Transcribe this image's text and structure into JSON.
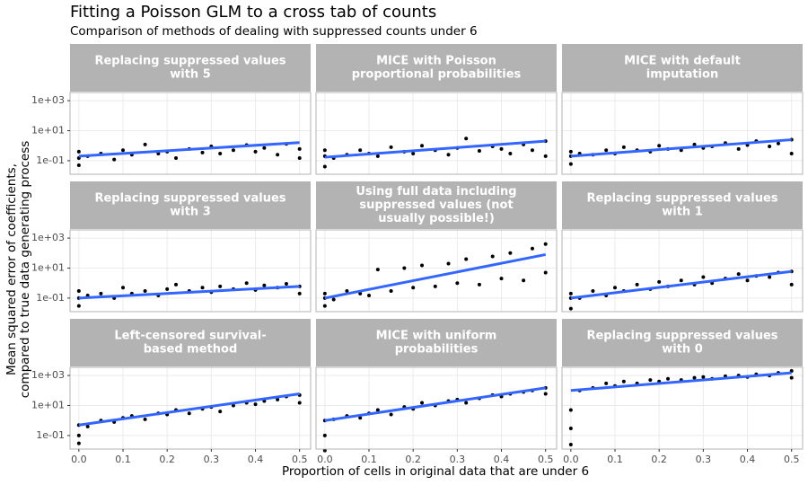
{
  "chart_data": {
    "type": "scatter",
    "title": "Fitting a Poisson GLM to a cross tab of counts",
    "subtitle": "Comparison of methods of dealing with suppressed counts under 6",
    "xlabel": "Proportion of cells in original data that are under 6",
    "ylabel": [
      "Mean squared error of coefficients,",
      "compared to true data generating process"
    ],
    "xlim": [
      -0.02,
      0.525
    ],
    "ylim": [
      0.0125,
      3500
    ],
    "ylog": true,
    "grid": true,
    "xticks": [
      {
        "value": 0,
        "label": "0.0"
      },
      0.1,
      0.2,
      0.3,
      0.4,
      0.5
    ],
    "yticks": [
      {
        "value": 0.1,
        "label": "1e-01"
      },
      {
        "value": 10,
        "label": "1e+01"
      },
      {
        "value": 1000,
        "label": "1e+03"
      }
    ],
    "point_color": "#000000",
    "fit_color": "#3366ff",
    "panels": [
      {
        "title": [
          "Replacing suppressed values",
          "with 5"
        ],
        "x": [
          0,
          0,
          0,
          0.02,
          0.05,
          0.08,
          0.1,
          0.12,
          0.15,
          0.18,
          0.2,
          0.22,
          0.25,
          0.28,
          0.3,
          0.32,
          0.35,
          0.38,
          0.4,
          0.42,
          0.45,
          0.47,
          0.5,
          0.5
        ],
        "y": [
          0.05,
          0.15,
          0.4,
          0.2,
          0.3,
          0.12,
          0.5,
          0.25,
          1.2,
          0.3,
          0.4,
          0.15,
          0.6,
          0.35,
          0.9,
          0.3,
          0.5,
          1.1,
          0.4,
          0.7,
          0.25,
          1.3,
          0.6,
          0.15
        ],
        "fit_x": [
          0,
          0.5
        ],
        "fit_y": [
          0.2,
          1.6
        ]
      },
      {
        "title": [
          "MICE with Poisson",
          "proportional probabilities"
        ],
        "x": [
          0,
          0,
          0,
          0.02,
          0.05,
          0.08,
          0.1,
          0.12,
          0.15,
          0.18,
          0.2,
          0.22,
          0.25,
          0.28,
          0.3,
          0.32,
          0.35,
          0.38,
          0.4,
          0.42,
          0.45,
          0.47,
          0.5,
          0.5
        ],
        "y": [
          0.04,
          0.2,
          0.5,
          0.15,
          0.25,
          0.5,
          0.3,
          0.2,
          0.8,
          0.4,
          0.3,
          1.0,
          0.5,
          0.25,
          0.7,
          3.0,
          0.45,
          0.9,
          0.6,
          0.3,
          1.2,
          0.5,
          2.0,
          0.2
        ],
        "fit_x": [
          0,
          0.5
        ],
        "fit_y": [
          0.17,
          2.0
        ]
      },
      {
        "title": [
          "MICE with default",
          "imputation"
        ],
        "x": [
          0,
          0,
          0,
          0.02,
          0.05,
          0.08,
          0.1,
          0.12,
          0.15,
          0.18,
          0.2,
          0.22,
          0.25,
          0.28,
          0.3,
          0.32,
          0.35,
          0.38,
          0.4,
          0.42,
          0.45,
          0.47,
          0.5,
          0.5
        ],
        "y": [
          0.06,
          0.2,
          0.4,
          0.3,
          0.25,
          0.5,
          0.3,
          0.8,
          0.5,
          0.4,
          1.0,
          0.6,
          0.5,
          1.2,
          0.7,
          0.9,
          1.5,
          0.6,
          1.1,
          2.0,
          0.9,
          1.4,
          2.5,
          0.3
        ],
        "fit_x": [
          0,
          0.5
        ],
        "fit_y": [
          0.2,
          2.5
        ]
      },
      {
        "title": [
          "Replacing suppressed values",
          "with 3"
        ],
        "x": [
          0,
          0,
          0,
          0.02,
          0.05,
          0.08,
          0.1,
          0.12,
          0.15,
          0.18,
          0.2,
          0.22,
          0.25,
          0.28,
          0.3,
          0.32,
          0.35,
          0.38,
          0.4,
          0.42,
          0.45,
          0.47,
          0.5,
          0.5
        ],
        "y": [
          0.03,
          0.1,
          0.3,
          0.15,
          0.2,
          0.1,
          0.5,
          0.2,
          0.3,
          0.15,
          0.4,
          0.8,
          0.3,
          0.5,
          0.25,
          0.6,
          0.4,
          1.0,
          0.35,
          0.7,
          0.5,
          0.9,
          0.6,
          0.2
        ],
        "fit_x": [
          0,
          0.5
        ],
        "fit_y": [
          0.1,
          0.6
        ]
      },
      {
        "title": [
          "Using full data including",
          "suppressed values (not",
          "usually possible!)"
        ],
        "x": [
          0,
          0,
          0,
          0.02,
          0.05,
          0.08,
          0.1,
          0.12,
          0.15,
          0.18,
          0.2,
          0.22,
          0.25,
          0.28,
          0.3,
          0.32,
          0.35,
          0.38,
          0.4,
          0.42,
          0.45,
          0.47,
          0.5,
          0.5
        ],
        "y": [
          0.03,
          0.1,
          0.2,
          0.08,
          0.3,
          0.2,
          0.15,
          8,
          0.3,
          10,
          0.5,
          15,
          0.6,
          20,
          1,
          40,
          0.8,
          60,
          2,
          100,
          1.5,
          200,
          5,
          400
        ],
        "fit_x": [
          0,
          0.5
        ],
        "fit_y": [
          0.1,
          80
        ]
      },
      {
        "title": [
          "Replacing suppressed values",
          "with 1"
        ],
        "x": [
          0,
          0,
          0,
          0.02,
          0.05,
          0.08,
          0.1,
          0.12,
          0.15,
          0.18,
          0.2,
          0.22,
          0.25,
          0.28,
          0.3,
          0.32,
          0.35,
          0.38,
          0.4,
          0.42,
          0.45,
          0.47,
          0.5,
          0.5
        ],
        "y": [
          0.02,
          0.1,
          0.2,
          0.1,
          0.3,
          0.15,
          0.5,
          0.3,
          0.8,
          0.4,
          1.2,
          0.6,
          1.5,
          0.8,
          2.5,
          1,
          2,
          4,
          1.5,
          3,
          2.5,
          5,
          6,
          0.8
        ],
        "fit_x": [
          0,
          0.5
        ],
        "fit_y": [
          0.1,
          6
        ]
      },
      {
        "title": [
          "Left-censored survival-",
          "based method"
        ],
        "x": [
          0,
          0,
          0,
          0.02,
          0.05,
          0.08,
          0.1,
          0.12,
          0.15,
          0.18,
          0.2,
          0.22,
          0.25,
          0.28,
          0.3,
          0.32,
          0.35,
          0.38,
          0.4,
          0.42,
          0.45,
          0.47,
          0.5,
          0.5
        ],
        "y": [
          0.03,
          0.1,
          0.5,
          0.4,
          1,
          0.8,
          1.5,
          2,
          1.2,
          3,
          2.5,
          5,
          3,
          6,
          8,
          4,
          10,
          15,
          12,
          20,
          25,
          40,
          50,
          15
        ],
        "fit_x": [
          0,
          0.5
        ],
        "fit_y": [
          0.5,
          60
        ]
      },
      {
        "title": [
          "MICE with uniform",
          "probabilities"
        ],
        "x": [
          0,
          0,
          0,
          0.02,
          0.05,
          0.08,
          0.1,
          0.12,
          0.15,
          0.18,
          0.2,
          0.22,
          0.25,
          0.28,
          0.3,
          0.32,
          0.35,
          0.38,
          0.4,
          0.42,
          0.45,
          0.47,
          0.5,
          0.5
        ],
        "y": [
          0.01,
          0.1,
          1,
          1.2,
          2,
          1.5,
          3,
          5,
          2.5,
          8,
          6,
          15,
          10,
          20,
          25,
          15,
          30,
          50,
          40,
          60,
          80,
          100,
          150,
          60
        ],
        "fit_x": [
          0,
          0.5
        ],
        "fit_y": [
          1,
          150
        ]
      },
      {
        "title": [
          "Replacing suppressed values",
          "with 0"
        ],
        "x": [
          0,
          0,
          0,
          0.02,
          0.05,
          0.08,
          0.1,
          0.12,
          0.15,
          0.18,
          0.2,
          0.22,
          0.25,
          0.28,
          0.3,
          0.32,
          0.35,
          0.38,
          0.4,
          0.42,
          0.45,
          0.47,
          0.5,
          0.5
        ],
        "y": [
          0.025,
          0.3,
          5,
          100,
          150,
          300,
          200,
          400,
          300,
          500,
          400,
          600,
          500,
          700,
          800,
          600,
          900,
          1000,
          800,
          1200,
          1000,
          1500,
          2000,
          700
        ],
        "fit_x": [
          0,
          0.5
        ],
        "fit_y": [
          100,
          1500
        ]
      }
    ]
  }
}
